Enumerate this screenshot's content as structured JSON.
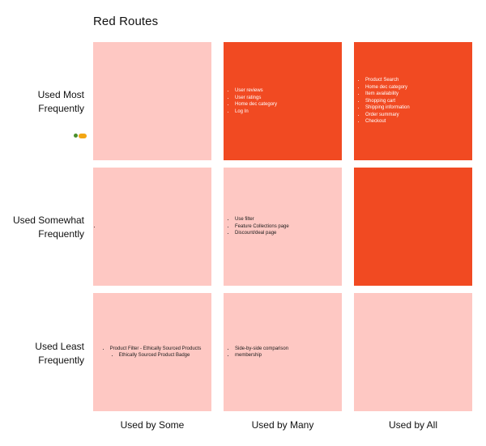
{
  "title": "Red Routes",
  "rows": [
    {
      "line1": "Used Most",
      "line2": "Frequently"
    },
    {
      "line1": "Used Somewhat",
      "line2": "Frequently"
    },
    {
      "line1": "Used Least",
      "line2": "Frequently"
    }
  ],
  "columns": [
    "Used by Some",
    "Used by Many",
    "Used by All"
  ],
  "cells": {
    "r0c0": {
      "color": "#fec8c3",
      "items": []
    },
    "r0c1": {
      "color": "#f14a22",
      "items": [
        "User reviews",
        "User ratings",
        "Home dec category",
        "Log In"
      ]
    },
    "r0c2": {
      "color": "#f14a22",
      "items": [
        "Product Search",
        "Home dec category",
        "Item availability",
        "Shopping cart",
        "Shipping information",
        "Order summary",
        "Checkout"
      ]
    },
    "r1c0": {
      "color": "#fec8c3",
      "items": [
        ""
      ]
    },
    "r1c1": {
      "color": "#fec8c3",
      "items": [
        "Use filter",
        "Feature Collections page",
        "Discount/deal page"
      ]
    },
    "r1c2": {
      "color": "#f14a22",
      "items": []
    },
    "r2c0": {
      "color": "#fec8c3",
      "items": [
        "Product Filter - Ethically Sourced Products"
      ],
      "subitems": [
        "Ethically Sourced Product Badge"
      ]
    },
    "r2c1": {
      "color": "#fec8c3",
      "items": [
        "Side-by-side comparison",
        "membership"
      ]
    },
    "r2c2": {
      "color": "#fec8c3",
      "items": []
    }
  },
  "colors": {
    "light": "#fec8c3",
    "dark": "#f14a22"
  },
  "tag_icon": "user-badge-icon"
}
